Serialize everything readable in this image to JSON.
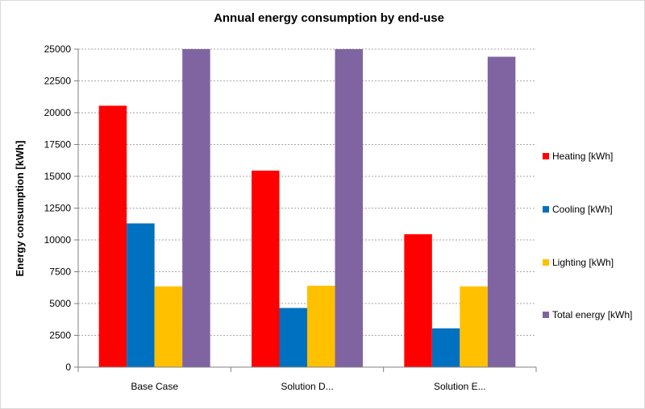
{
  "chart_data": {
    "type": "bar",
    "title": "Annual energy consumption by end-use",
    "xlabel": "",
    "ylabel": "Energy consumption  [kWh]",
    "categories": [
      "Base Case",
      "Solution D...",
      "Solution E..."
    ],
    "ylim": [
      0,
      25000
    ],
    "yticks": [
      0,
      2500,
      5000,
      7500,
      10000,
      12500,
      15000,
      17500,
      20000,
      22500,
      25000
    ],
    "grid": true,
    "legend_position": "right",
    "series": [
      {
        "name": "Heating [kWh]",
        "color": "#ff0000",
        "values": [
          20550,
          15450,
          10450
        ]
      },
      {
        "name": "Cooling [kWh]",
        "color": "#0070c0",
        "values": [
          11300,
          4650,
          3050
        ]
      },
      {
        "name": "Lighting [kWh]",
        "color": "#ffc000",
        "values": [
          6350,
          6400,
          6350
        ]
      },
      {
        "name": "Total energy [kWh]",
        "color": "#8064a2",
        "values": [
          25000,
          25000,
          24400
        ]
      }
    ]
  }
}
